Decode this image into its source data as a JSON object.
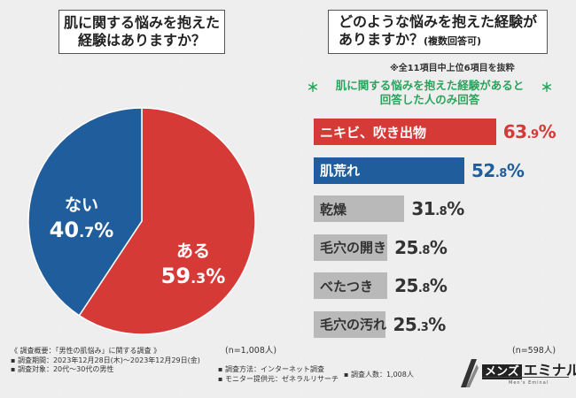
{
  "left_question": {
    "line1": "肌に関する悩みを抱えた",
    "line2": "経験はありますか？"
  },
  "right_question": {
    "line1": "どのような悩みを抱えた経験が",
    "line2": "ありますか？",
    "line2_small": "(複数回答可)"
  },
  "note_top": "※全11項目中上位6項目を抜粋",
  "answered_note": {
    "line1": "肌に関する悩みを抱えた経験があると",
    "line2": "回答した人のみ回答",
    "star": "＊"
  },
  "left_n": "(n=1,008人)",
  "right_n": "(n=598人)",
  "colors": {
    "red": "#d63a37",
    "blue": "#1f5d9c",
    "gray": "#b9b9b9"
  },
  "chart_data": [
    {
      "type": "pie",
      "title": "肌に関する悩みを抱えた経験はありますか？",
      "slices": [
        {
          "label": "ある",
          "value": 59.3,
          "value_int": "59",
          "value_dec": ".3",
          "unit": "%",
          "color": "#d63a37"
        },
        {
          "label": "ない",
          "value": 40.7,
          "value_int": "40",
          "value_dec": ".7",
          "unit": "%",
          "color": "#1f5d9c"
        }
      ],
      "n": "(n=1,008人)"
    },
    {
      "type": "bar",
      "orientation": "horizontal",
      "title": "どのような悩みを抱えた経験がありますか？(複数回答可)",
      "categories": [
        "ニキビ、吹き出物",
        "肌荒れ",
        "乾燥",
        "毛穴の開き",
        "べたつき",
        "毛穴の汚れ"
      ],
      "values": [
        63.9,
        52.8,
        31.8,
        25.8,
        25.8,
        25.3
      ],
      "value_int": [
        "63",
        "52",
        "31",
        "25",
        "25",
        "25"
      ],
      "value_dec": [
        ".9",
        ".8",
        ".8",
        ".8",
        ".8",
        ".3"
      ],
      "unit": "%",
      "bar_colors": [
        "#d63a37",
        "#1f5d9c",
        "#b9b9b9",
        "#b9b9b9",
        "#b9b9b9",
        "#b9b9b9"
      ],
      "value_colors": [
        "#d63a37",
        "#1f5d9c",
        "#333333",
        "#333333",
        "#333333",
        "#333333"
      ],
      "xlim": [
        0,
        100
      ],
      "n": "(n=598人)"
    }
  ],
  "footer": {
    "overview": "《 調査概要：「男性の肌悩み」に関する調査 》",
    "period": "▪ 調査期間：2023年12月28日(木)～2023年12月29日(金)",
    "target": "▪ 調査対象：20代～30代の男性",
    "method": "▪ 調査方法：インターネット調査",
    "provider": "▪ モニター提供元：ゼネラルリサーチ",
    "count": "▪ 調査人数：1,008人"
  },
  "logo": {
    "box": "メンズ",
    "name": "エミナル",
    "sub": "Men's Eminal"
  }
}
